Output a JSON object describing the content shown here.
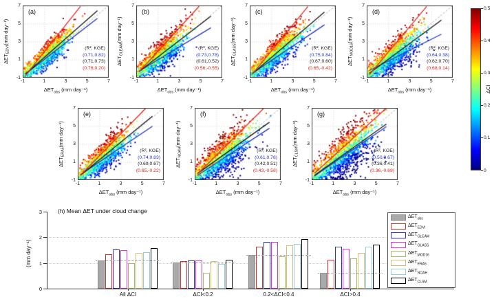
{
  "colorbar": {
    "label": "ΔCI",
    "tick_labels": [
      "0",
      "0.1",
      "0.2",
      "0.3",
      "0.4",
      "0.5"
    ],
    "min": 0,
    "max": 0.5,
    "colormap": "jet"
  },
  "scatter_axes": {
    "tick_values": [
      -1,
      1,
      3,
      5,
      7
    ],
    "axis_min": -1,
    "axis_max": 7,
    "x_label_prefix": "ΔET",
    "x_label_sub": "obs",
    "x_label_unit": " (mm day⁻¹)",
    "y_label_prefix": "ΔET",
    "y_label_unit": "(mm day⁻¹)",
    "stats_header": "(R², KGE)",
    "identity_line": "dashed gray 1:1",
    "grid": true
  },
  "chart_data": [
    {
      "type": "scatter",
      "panel_tag": "(a)",
      "product": "EDVI",
      "stats": {
        "blue": "(0.71,0.82)",
        "black": "(0.71,0.73)",
        "red": "(0.76,0.20)"
      },
      "fit_lines": {
        "blue": {
          "slope": 0.92,
          "intercept": 0.1
        },
        "black": {
          "slope": 1.05,
          "intercept": 0.18
        },
        "red": {
          "slope": 1.5,
          "intercept": 0.35
        }
      },
      "cloud": {
        "n": 1300,
        "seed": 101,
        "x_mean": 1.3,
        "x_sd": 1.05,
        "noise_sd": 0.62
      }
    },
    {
      "type": "scatter",
      "panel_tag": "(b)",
      "product": "GLEAM",
      "stats": {
        "blue": "(0.73,0.78)",
        "black": "(0.61,0.52)",
        "red": "(0.56,-0.55)"
      },
      "fit_lines": {
        "blue": {
          "slope": 0.72,
          "intercept": 0.25
        },
        "black": {
          "slope": 0.92,
          "intercept": 0.35
        },
        "red": {
          "slope": 1.3,
          "intercept": 0.6
        }
      },
      "cloud": {
        "n": 1300,
        "seed": 102,
        "x_mean": 1.25,
        "x_sd": 1.1,
        "noise_sd": 0.75
      }
    },
    {
      "type": "scatter",
      "panel_tag": "(c)",
      "product": "GLASS",
      "stats": {
        "blue": "(0.75,0.84)",
        "black": "(0.67,0.60)",
        "red": "(0.65,-0.42)"
      },
      "fit_lines": {
        "blue": {
          "slope": 0.8,
          "intercept": 0.1
        },
        "black": {
          "slope": 1.02,
          "intercept": 0.2
        },
        "red": {
          "slope": 1.45,
          "intercept": 0.5
        }
      },
      "cloud": {
        "n": 1300,
        "seed": 103,
        "x_mean": 1.3,
        "x_sd": 1.15,
        "noise_sd": 0.72
      }
    },
    {
      "type": "scatter",
      "panel_tag": "(d)",
      "product": "MOD16",
      "stats": {
        "blue": "(0.64,0.38)",
        "black": "(0.62,0.70)",
        "red": "(0.68,0.14)"
      },
      "fit_lines": {
        "blue": {
          "slope": 0.6,
          "intercept": 0.25
        },
        "black": {
          "slope": 0.88,
          "intercept": 0.15
        },
        "red": {
          "slope": 1.42,
          "intercept": 0.4
        }
      },
      "cloud": {
        "n": 1300,
        "seed": 104,
        "x_mean": 1.4,
        "x_sd": 1.2,
        "noise_sd": 0.8
      }
    },
    {
      "type": "scatter",
      "panel_tag": "(e)",
      "product": "ERA5",
      "stats": {
        "blue": "(0.74,0.83)",
        "black": "(0.69,0.67)",
        "red": "(0.65,-0.22)"
      },
      "fit_lines": {
        "blue": {
          "slope": 0.8,
          "intercept": 0.2
        },
        "black": {
          "slope": 0.98,
          "intercept": 0.25
        },
        "red": {
          "slope": 1.22,
          "intercept": 0.45
        }
      },
      "cloud": {
        "n": 1300,
        "seed": 105,
        "x_mean": 1.35,
        "x_sd": 1.15,
        "noise_sd": 0.7
      }
    },
    {
      "type": "scatter",
      "panel_tag": "(f)",
      "product": "NOAH",
      "stats": {
        "blue": "(0.61,0.78)",
        "black": "(0.42,0.51)",
        "red": "(0.43,-0.58)"
      },
      "fit_lines": {
        "blue": {
          "slope": 0.78,
          "intercept": 0.1
        },
        "black": {
          "slope": 0.85,
          "intercept": 0.35
        },
        "red": {
          "slope": 1.18,
          "intercept": 0.55
        }
      },
      "cloud": {
        "n": 1300,
        "seed": 106,
        "x_mean": 1.5,
        "x_sd": 1.25,
        "noise_sd": 0.95
      }
    },
    {
      "type": "scatter",
      "panel_tag": "(g)",
      "product": "CLSM",
      "stats": {
        "blue": "(0.50,0.67)",
        "black": "(0.36,0.41)",
        "red": "(0.36,-0.69)"
      },
      "fit_lines": {
        "blue": {
          "slope": 0.82,
          "intercept": 0.05
        },
        "black": {
          "slope": 0.85,
          "intercept": 0.15
        },
        "red": {
          "slope": 1.08,
          "intercept": 0.55
        }
      },
      "cloud": {
        "n": 1300,
        "seed": 107,
        "x_mean": 1.9,
        "x_sd": 1.45,
        "noise_sd": 1.05
      }
    },
    {
      "type": "bar",
      "panel_tag": "(h)",
      "title": "(h) Mean ΔET under cloud change",
      "ylabel": "(mm day⁻¹)",
      "ylim": [
        0,
        3
      ],
      "ytick_labels": [
        "0",
        "1",
        "2",
        "3"
      ],
      "categories": [
        "All ΔCI",
        "ΔCI<0.2",
        "0.2<ΔCI<0.4",
        "ΔCI>0.4"
      ],
      "series": [
        {
          "name_prefix": "ΔET",
          "sub": "obs",
          "edge": "#8c8c8c",
          "fill": "#a9a9a9",
          "values": [
            1.1,
            1.03,
            1.32,
            0.63
          ]
        },
        {
          "name_prefix": "ΔET",
          "sub": "EDVI",
          "edge": "#d93025",
          "fill": "#ffffff",
          "values": [
            1.33,
            1.06,
            1.63,
            1.13
          ]
        },
        {
          "name_prefix": "ΔET",
          "sub": "GLEAM",
          "edge": "#2733cc",
          "fill": "#ffffff",
          "values": [
            1.53,
            1.1,
            1.81,
            1.63
          ]
        },
        {
          "name_prefix": "ΔET",
          "sub": "GLASS",
          "edge": "#dd33dd",
          "fill": "#ffffff",
          "values": [
            1.51,
            1.1,
            1.81,
            1.55
          ]
        },
        {
          "name_prefix": "ΔET",
          "sub": "MOD16",
          "edge": "#a0bf60",
          "fill": "#ffffff",
          "values": [
            1.0,
            0.61,
            1.27,
            1.18
          ]
        },
        {
          "name_prefix": "ΔET",
          "sub": "ERA5",
          "edge": "#ddbb77",
          "fill": "#ffffff",
          "values": [
            1.4,
            1.07,
            1.7,
            1.4
          ]
        },
        {
          "name_prefix": "ΔET",
          "sub": "NOAH",
          "edge": "#8fd0e8",
          "fill": "#ffffff",
          "values": [
            1.43,
            0.97,
            1.75,
            1.63
          ]
        },
        {
          "name_prefix": "ΔET",
          "sub": "CLSM",
          "edge": "#000000",
          "fill": "#ffffff",
          "values": [
            1.59,
            1.13,
            1.92,
            1.72
          ]
        }
      ],
      "obs_reference_values": [
        1.1,
        1.03,
        1.32,
        0.63
      ]
    }
  ],
  "colors": {
    "fit_blue": "#2233bb",
    "fit_black": "#151515",
    "fit_red": "#e3261b",
    "stat_blue": "#2233cc",
    "stat_red": "#dd2418",
    "identity": "#b5b5b5"
  }
}
